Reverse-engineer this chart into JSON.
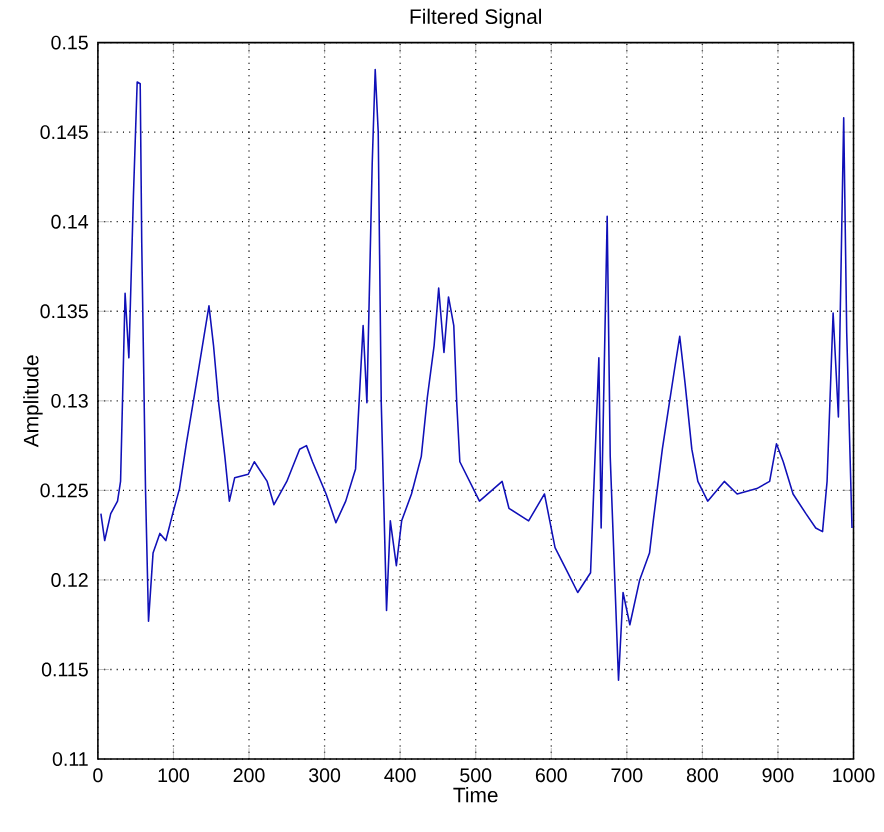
{
  "chart_data": {
    "type": "line",
    "title": "Filtered Signal",
    "xlabel": "Time",
    "ylabel": "Amplitude",
    "xlim": [
      0,
      1000
    ],
    "xticks": [
      0,
      100,
      200,
      300,
      400,
      500,
      600,
      700,
      800,
      900,
      1000
    ],
    "ylim": [
      0.11,
      0.15
    ],
    "yticks": [
      0.11,
      0.115,
      0.12,
      0.125,
      0.13,
      0.135,
      0.14,
      0.145,
      0.15
    ],
    "grid": true,
    "line_style": "solid",
    "marker": "none",
    "series": [
      {
        "color": "#1010b8",
        "x": [
          4,
          9,
          17,
          26,
          30,
          36,
          41,
          47,
          52,
          56,
          58,
          63,
          67,
          73,
          82,
          90,
          99,
          108,
          117,
          130,
          140,
          147,
          153,
          160,
          168,
          174,
          181,
          199,
          207,
          224,
          233,
          250,
          267,
          276,
          284,
          302,
          315,
          328,
          341,
          351,
          356,
          363,
          367,
          371,
          375,
          382,
          387,
          395,
          402,
          415,
          428,
          436,
          445,
          451,
          458,
          464,
          471,
          475,
          479,
          492,
          505,
          535,
          544,
          570,
          591,
          605,
          622,
          635,
          652,
          663,
          666,
          674,
          678,
          689,
          695,
          704,
          717,
          730,
          735,
          747,
          756,
          764,
          770,
          777,
          786,
          794,
          807,
          829,
          846,
          872,
          889,
          898,
          907,
          920,
          937,
          950,
          959,
          965,
          973,
          980,
          987,
          991,
          998
        ],
        "values": [
          0.1237,
          0.1222,
          0.1237,
          0.1244,
          0.1255,
          0.136,
          0.1324,
          0.1414,
          0.1478,
          0.1477,
          0.1389,
          0.1251,
          0.1177,
          0.1215,
          0.1226,
          0.1222,
          0.1237,
          0.1251,
          0.1276,
          0.1309,
          0.1335,
          0.1353,
          0.1331,
          0.1298,
          0.1269,
          0.1244,
          0.1257,
          0.1259,
          0.1266,
          0.1255,
          0.1242,
          0.1255,
          0.1273,
          0.1275,
          0.1266,
          0.1248,
          0.1232,
          0.1244,
          0.1262,
          0.1342,
          0.1299,
          0.1432,
          0.1485,
          0.145,
          0.1299,
          0.1183,
          0.1233,
          0.1208,
          0.1233,
          0.1248,
          0.1269,
          0.1302,
          0.1331,
          0.1363,
          0.1327,
          0.1358,
          0.1342,
          0.1298,
          0.1266,
          0.1255,
          0.1244,
          0.1255,
          0.124,
          0.1233,
          0.1248,
          0.1218,
          0.1204,
          0.1193,
          0.1204,
          0.1324,
          0.1229,
          0.1403,
          0.1269,
          0.1144,
          0.1193,
          0.1175,
          0.12,
          0.1215,
          0.1233,
          0.1273,
          0.1298,
          0.132,
          0.1336,
          0.131,
          0.1273,
          0.1255,
          0.1244,
          0.1255,
          0.1248,
          0.1251,
          0.1255,
          0.1276,
          0.1266,
          0.1248,
          0.1237,
          0.1229,
          0.1227,
          0.1255,
          0.1349,
          0.1291,
          0.1458,
          0.1338,
          0.1229
        ]
      }
    ]
  }
}
